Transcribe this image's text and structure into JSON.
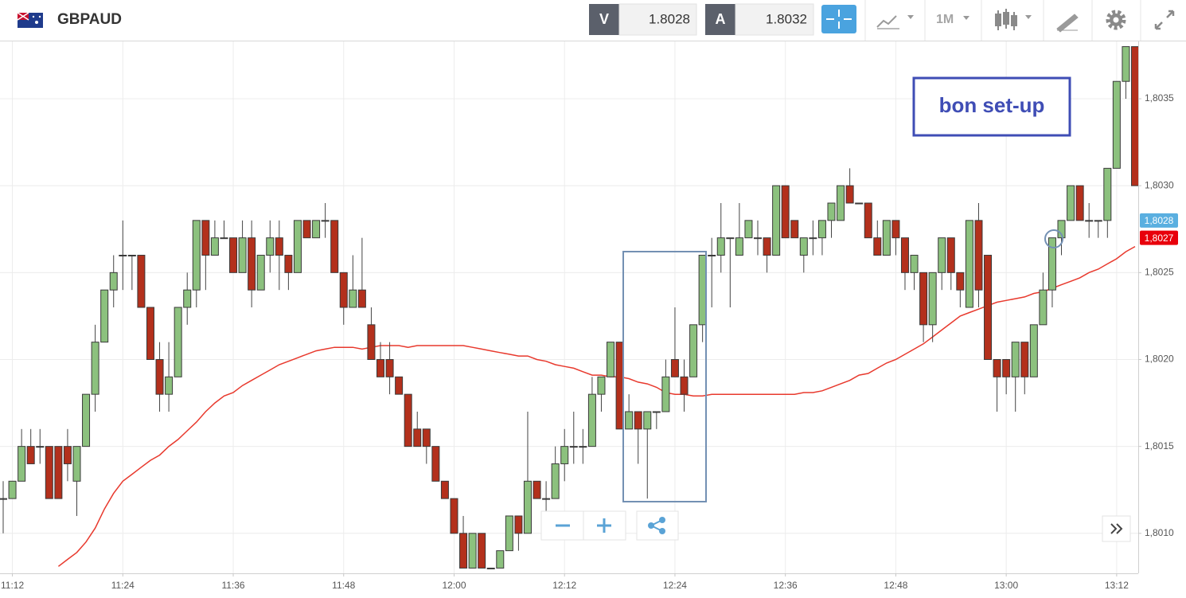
{
  "toolbar": {
    "symbol": "GBPAUD",
    "bid_label": "V",
    "bid": 1.8028,
    "ask_label": "A",
    "ask": 1.8032,
    "timeframe": "1M"
  },
  "chart_data": {
    "type": "candlestick",
    "categories": [
      null,
      "11:12",
      null,
      null,
      null,
      null,
      null,
      null,
      null,
      null,
      null,
      null,
      null,
      "11:24",
      null,
      null,
      null,
      null,
      null,
      null,
      null,
      null,
      null,
      null,
      null,
      "11:36",
      null,
      null,
      null,
      null,
      null,
      null,
      null,
      null,
      null,
      null,
      null,
      "11:48",
      null,
      null,
      null,
      null,
      null,
      null,
      null,
      null,
      null,
      null,
      null,
      "12:00",
      null,
      null,
      null,
      null,
      null,
      null,
      null,
      null,
      null,
      null,
      null,
      "12:12",
      null,
      null,
      null,
      null,
      null,
      null,
      null,
      null,
      null,
      null,
      null,
      "12:24",
      null,
      null,
      null,
      null,
      null,
      null,
      null,
      null,
      null,
      null,
      null,
      "12:36",
      null,
      null,
      null,
      null,
      null,
      null,
      null,
      null,
      null,
      null,
      null,
      "12:48",
      null,
      null,
      null,
      null,
      null,
      null,
      null,
      null,
      null,
      null,
      null,
      "13:00",
      null,
      null,
      null,
      null,
      null,
      null,
      null,
      null,
      null,
      null,
      null,
      "13:12",
      null,
      null
    ],
    "open": [
      1.8012,
      1.8012,
      1.8013,
      1.8015,
      1.8015,
      1.8015,
      1.8015,
      1.8015,
      1.8013,
      1.8015,
      1.8018,
      1.8021,
      1.8024,
      1.8026,
      1.8026,
      1.8026,
      1.8023,
      1.802,
      1.8018,
      1.8019,
      1.8023,
      1.8024,
      1.8028,
      1.8026,
      1.8027,
      1.8027,
      1.8025,
      1.8027,
      1.8024,
      1.8026,
      1.8027,
      1.8026,
      1.8025,
      1.8028,
      1.8027,
      1.8028,
      1.8028,
      1.8025,
      1.8023,
      1.8024,
      1.8022,
      1.802,
      1.802,
      1.8019,
      1.8018,
      1.8016,
      1.8016,
      1.8015,
      1.8013,
      1.8012,
      1.801,
      1.8008,
      1.801,
      1.8008,
      1.8008,
      1.8009,
      1.8011,
      1.801,
      1.8013,
      1.8012,
      1.8012,
      1.8014,
      1.8015,
      1.8015,
      1.8015,
      1.8018,
      1.8019,
      1.8021,
      1.8016,
      1.8017,
      1.8016,
      1.8017,
      1.8017,
      1.802,
      1.8019,
      1.8019,
      1.8022,
      1.8026,
      1.8026,
      1.8027,
      1.8026,
      1.8027,
      1.8027,
      1.8027,
      1.8026,
      1.803,
      1.8028,
      1.8026,
      1.8027,
      1.8027,
      1.8028,
      1.8028,
      1.803,
      1.8029,
      1.8029,
      1.8027,
      1.8026,
      1.8028,
      1.8027,
      1.8025,
      1.8025,
      1.8022,
      1.8025,
      1.8027,
      1.8025,
      1.8023,
      1.8028,
      1.8026,
      1.802,
      1.802,
      1.8019,
      1.8021,
      1.8019,
      1.8022,
      1.8024,
      1.8027,
      1.8028,
      1.803,
      1.8028,
      1.8028,
      1.8028,
      1.8031,
      1.8036,
      1.8038
    ],
    "high": [
      1.8013,
      1.8013,
      1.8016,
      1.8016,
      1.8016,
      1.8015,
      1.8015,
      1.8016,
      1.8015,
      1.8018,
      1.8022,
      1.8024,
      1.8026,
      1.8028,
      1.8026,
      1.8026,
      1.8023,
      1.8021,
      1.8021,
      1.8023,
      1.8025,
      1.8028,
      1.8028,
      1.8028,
      1.8028,
      1.8027,
      1.8028,
      1.8028,
      1.8026,
      1.8028,
      1.8028,
      1.8026,
      1.8028,
      1.8028,
      1.8028,
      1.8029,
      1.8028,
      1.8025,
      1.8026,
      1.8027,
      1.8023,
      1.8021,
      1.8021,
      1.8019,
      1.8018,
      1.8017,
      1.8016,
      1.8015,
      1.8013,
      1.8012,
      1.8011,
      1.801,
      1.801,
      1.8008,
      1.8009,
      1.8011,
      1.8011,
      1.8017,
      1.8013,
      1.8013,
      1.8015,
      1.8016,
      1.8017,
      1.8016,
      1.8019,
      1.8019,
      1.8021,
      1.8021,
      1.8018,
      1.8017,
      1.8017,
      1.8017,
      1.802,
      1.8023,
      1.802,
      1.8022,
      1.8026,
      1.8027,
      1.8029,
      1.8027,
      1.8029,
      1.8028,
      1.8028,
      1.8027,
      1.803,
      1.803,
      1.8028,
      1.8027,
      1.8028,
      1.8028,
      1.8029,
      1.803,
      1.8031,
      1.8029,
      1.8029,
      1.8028,
      1.8028,
      1.8028,
      1.8027,
      1.8026,
      1.8025,
      1.8025,
      1.8027,
      1.8027,
      1.8025,
      1.8028,
      1.8029,
      1.8026,
      1.802,
      1.802,
      1.8021,
      1.8021,
      1.8022,
      1.8025,
      1.8027,
      1.8028,
      1.803,
      1.803,
      1.8029,
      1.8028,
      1.8031,
      1.8036,
      1.8038,
      1.8038
    ],
    "low": [
      1.801,
      1.8012,
      1.8013,
      1.8014,
      1.8014,
      1.8012,
      1.8012,
      1.8013,
      1.8011,
      1.8015,
      1.8017,
      1.8021,
      1.8023,
      1.8024,
      1.8024,
      1.8023,
      1.802,
      1.8017,
      1.8017,
      1.8019,
      1.8022,
      1.8023,
      1.8024,
      1.8026,
      1.8027,
      1.8025,
      1.8025,
      1.8023,
      1.8024,
      1.8025,
      1.8024,
      1.8024,
      1.8025,
      1.8027,
      1.8027,
      1.8027,
      1.8025,
      1.8022,
      1.8023,
      1.8023,
      1.802,
      1.8019,
      1.8018,
      1.8018,
      1.8015,
      1.8015,
      1.8014,
      1.8013,
      1.8012,
      1.801,
      1.8008,
      1.8008,
      1.8008,
      1.8008,
      1.8008,
      1.8009,
      1.8009,
      1.801,
      1.8012,
      1.8011,
      1.8012,
      1.8013,
      1.8014,
      1.8014,
      1.8015,
      1.8017,
      1.8019,
      1.8016,
      1.8016,
      1.8014,
      1.8012,
      1.8016,
      1.8017,
      1.8019,
      1.8017,
      1.8019,
      1.8021,
      1.8023,
      1.8025,
      1.8023,
      1.8026,
      1.8027,
      1.8026,
      1.8025,
      1.8026,
      1.8027,
      1.8027,
      1.8025,
      1.8026,
      1.8026,
      1.8027,
      1.8028,
      1.8029,
      1.8029,
      1.8027,
      1.8026,
      1.8026,
      1.8026,
      1.8024,
      1.8024,
      1.8021,
      1.8021,
      1.8024,
      1.8024,
      1.8023,
      1.8023,
      1.8023,
      1.802,
      1.8017,
      1.8018,
      1.8017,
      1.8018,
      1.8019,
      1.8022,
      1.8023,
      1.8026,
      1.8028,
      1.8028,
      1.8027,
      1.8027,
      1.8027,
      1.8031,
      1.8035,
      1.803
    ],
    "close": [
      1.8012,
      1.8013,
      1.8015,
      1.8014,
      1.8015,
      1.8012,
      1.8012,
      1.8014,
      1.8015,
      1.8018,
      1.8021,
      1.8024,
      1.8025,
      1.8026,
      1.8026,
      1.8023,
      1.802,
      1.8018,
      1.8019,
      1.8023,
      1.8024,
      1.8028,
      1.8026,
      1.8027,
      1.8027,
      1.8025,
      1.8027,
      1.8024,
      1.8026,
      1.8027,
      1.8026,
      1.8025,
      1.8028,
      1.8027,
      1.8028,
      1.8028,
      1.8025,
      1.8023,
      1.8024,
      1.8023,
      1.802,
      1.8019,
      1.8019,
      1.8018,
      1.8015,
      1.8015,
      1.8015,
      1.8013,
      1.8012,
      1.801,
      1.8008,
      1.801,
      1.8008,
      1.8008,
      1.8009,
      1.8011,
      1.801,
      1.8013,
      1.8012,
      1.8012,
      1.8014,
      1.8015,
      1.8015,
      1.8015,
      1.8018,
      1.8019,
      1.8021,
      1.8016,
      1.8017,
      1.8016,
      1.8017,
      1.8017,
      1.8019,
      1.8019,
      1.8018,
      1.8022,
      1.8026,
      1.8026,
      1.8027,
      1.8027,
      1.8027,
      1.8028,
      1.8027,
      1.8026,
      1.803,
      1.8027,
      1.8027,
      1.8027,
      1.8027,
      1.8028,
      1.8029,
      1.803,
      1.8029,
      1.8029,
      1.8027,
      1.8026,
      1.8028,
      1.8027,
      1.8025,
      1.8026,
      1.8022,
      1.8025,
      1.8027,
      1.8025,
      1.8024,
      1.8028,
      1.8024,
      1.802,
      1.8019,
      1.8019,
      1.8021,
      1.8019,
      1.8022,
      1.8024,
      1.8027,
      1.8028,
      1.803,
      1.8028,
      1.8028,
      1.8028,
      1.8031,
      1.8036,
      1.8038,
      1.803
    ],
    "up_color": "#8cc17e",
    "down_color": "#b3301c",
    "overlay": {
      "color": "#e8392d",
      "values": [
        null,
        null,
        null,
        null,
        null,
        null,
        1.80081,
        1.80085,
        1.80089,
        1.80095,
        1.80103,
        1.80114,
        1.80123,
        1.8013,
        1.80134,
        1.80138,
        1.80142,
        1.80145,
        1.8015,
        1.80154,
        1.80159,
        1.80164,
        1.8017,
        1.80175,
        1.80179,
        1.80181,
        1.80185,
        1.80188,
        1.80191,
        1.80194,
        1.80197,
        1.80199,
        1.80201,
        1.80203,
        1.80205,
        1.80206,
        1.80207,
        1.80207,
        1.80207,
        1.80206,
        1.80207,
        1.80208,
        1.80208,
        1.80208,
        1.80207,
        1.80208,
        1.80208,
        1.80208,
        1.80208,
        1.80208,
        1.80208,
        1.80207,
        1.80206,
        1.80205,
        1.80204,
        1.80203,
        1.80202,
        1.80202,
        1.802,
        1.80199,
        1.80197,
        1.80196,
        1.80195,
        1.80193,
        1.80191,
        1.80191,
        1.8019,
        1.8019,
        1.80189,
        1.80187,
        1.80186,
        1.80184,
        1.80181,
        1.8018,
        1.8018,
        1.80179,
        1.80179,
        1.8018,
        1.8018,
        1.8018,
        1.8018,
        1.8018,
        1.8018,
        1.8018,
        1.8018,
        1.8018,
        1.8018,
        1.80181,
        1.80181,
        1.80182,
        1.80184,
        1.80186,
        1.80188,
        1.80191,
        1.80192,
        1.80195,
        1.80198,
        1.802,
        1.80203,
        1.80206,
        1.80209,
        1.80213,
        1.80217,
        1.80221,
        1.80225,
        1.80227,
        1.80229,
        1.80231,
        1.80233,
        1.80234,
        1.80235,
        1.80236,
        1.80238,
        1.80239,
        1.80241,
        1.80243,
        1.80245,
        1.80247,
        1.8025,
        1.80252,
        1.80255,
        1.80258,
        1.80262,
        1.80265
      ]
    },
    "ylim": [
      1.80077,
      1.80383
    ],
    "yticks": [
      {
        "value": 1.801,
        "label": "1,8010"
      },
      {
        "value": 1.8015,
        "label": "1,8015"
      },
      {
        "value": 1.802,
        "label": "1,8020"
      },
      {
        "value": 1.8025,
        "label": "1,8025"
      },
      {
        "value": 1.803,
        "label": "1,8030"
      },
      {
        "value": 1.8035,
        "label": "1,8035"
      }
    ],
    "grid": true,
    "price_tags": [
      {
        "value": 1.8028,
        "label": "1,8028",
        "color": "#5aafe0"
      },
      {
        "value": 1.8027,
        "label": "1,8027",
        "color": "#e8000b"
      }
    ],
    "annotation": "bon set-up"
  }
}
